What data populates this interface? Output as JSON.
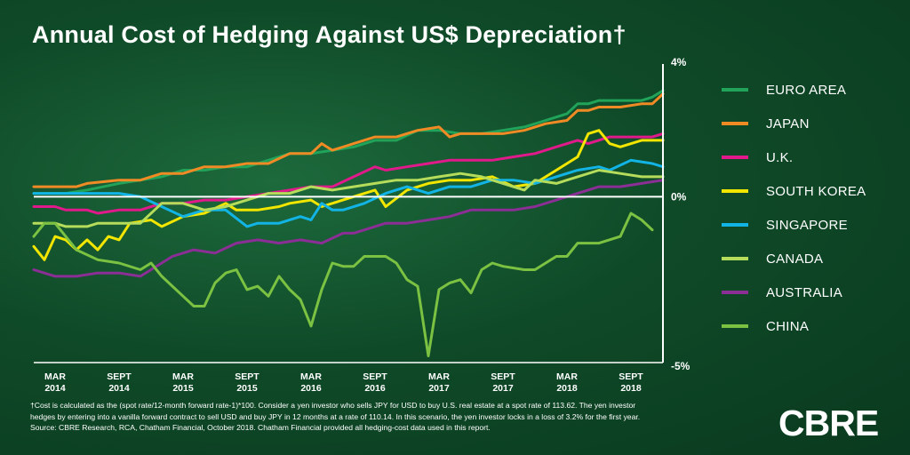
{
  "title": "Annual Cost of Hedging Against US$ Depreciation†",
  "footnote": {
    "line1": "†Cost is calculated as the (spot rate/12-month forward rate-1)*100. Consider a yen investor who sells JPY for USD to buy U.S. real estate at a spot rate of 113.62. The yen investor",
    "line2": "hedges by entering into a vanilla forward contract to sell USD and buy JPY in 12 months at a rate of 110.14. In this scenario, the yen investor locks in a loss of 3.2% for the first year.",
    "line3": "Source: CBRE Research, RCA, Chatham Financial, October 2018. Chatham Financial provided all hedging-cost data used in this report."
  },
  "logo": "CBRE",
  "chart_data": {
    "type": "line",
    "title": "Annual Cost of Hedging Against US$ Depreciation†",
    "xlabel": "",
    "ylabel": "",
    "x_ticks": [
      {
        "m1": "MAR",
        "m2": "2014",
        "x": 2
      },
      {
        "m1": "SEPT",
        "m2": "2014",
        "x": 8
      },
      {
        "m1": "MAR",
        "m2": "2015",
        "x": 14
      },
      {
        "m1": "SEPT",
        "m2": "2015",
        "x": 20
      },
      {
        "m1": "MAR",
        "m2": "2016",
        "x": 26
      },
      {
        "m1": "SEPT",
        "m2": "2016",
        "x": 32
      },
      {
        "m1": "MAR",
        "m2": "2017",
        "x": 38
      },
      {
        "m1": "SEPT",
        "m2": "2017",
        "x": 44
      },
      {
        "m1": "MAR",
        "m2": "2018",
        "x": 50
      },
      {
        "m1": "SEPT",
        "m2": "2018",
        "x": 56
      }
    ],
    "y_ticks": [
      {
        "label": "4%",
        "value": 4
      },
      {
        "label": "0%",
        "value": 0
      },
      {
        "label": "-5%",
        "value": -5
      }
    ],
    "xlim": [
      0,
      59
    ],
    "ylim": [
      -5,
      4
    ],
    "grid": false,
    "legend_position": "right",
    "series": [
      {
        "name": "EURO AREA",
        "color": "#21a35a",
        "points": [
          [
            0,
            0.1
          ],
          [
            3,
            0.1
          ],
          [
            5,
            0.2
          ],
          [
            8,
            0.4
          ],
          [
            12,
            0.6
          ],
          [
            14,
            0.8
          ],
          [
            16,
            0.8
          ],
          [
            18,
            0.9
          ],
          [
            20,
            0.9
          ],
          [
            22,
            1.1
          ],
          [
            24,
            1.3
          ],
          [
            26,
            1.3
          ],
          [
            28,
            1.4
          ],
          [
            30,
            1.5
          ],
          [
            32,
            1.7
          ],
          [
            34,
            1.7
          ],
          [
            36,
            2.0
          ],
          [
            38,
            2.0
          ],
          [
            40,
            1.9
          ],
          [
            42,
            1.9
          ],
          [
            44,
            2.0
          ],
          [
            46,
            2.1
          ],
          [
            48,
            2.3
          ],
          [
            50,
            2.5
          ],
          [
            51,
            2.8
          ],
          [
            52,
            2.8
          ],
          [
            53,
            2.9
          ],
          [
            55,
            2.9
          ],
          [
            57,
            2.9
          ],
          [
            58,
            3.0
          ],
          [
            59,
            3.2
          ]
        ]
      },
      {
        "name": "JAPAN",
        "color": "#f08a24",
        "points": [
          [
            0,
            0.3
          ],
          [
            4,
            0.3
          ],
          [
            5,
            0.4
          ],
          [
            8,
            0.5
          ],
          [
            10,
            0.5
          ],
          [
            12,
            0.7
          ],
          [
            14,
            0.7
          ],
          [
            16,
            0.9
          ],
          [
            18,
            0.9
          ],
          [
            20,
            1.0
          ],
          [
            22,
            1.0
          ],
          [
            24,
            1.3
          ],
          [
            26,
            1.3
          ],
          [
            27,
            1.6
          ],
          [
            28,
            1.4
          ],
          [
            30,
            1.6
          ],
          [
            32,
            1.8
          ],
          [
            34,
            1.8
          ],
          [
            36,
            2.0
          ],
          [
            38,
            2.1
          ],
          [
            39,
            1.8
          ],
          [
            40,
            1.9
          ],
          [
            44,
            1.9
          ],
          [
            46,
            2.0
          ],
          [
            48,
            2.2
          ],
          [
            50,
            2.3
          ],
          [
            51,
            2.6
          ],
          [
            52,
            2.6
          ],
          [
            53,
            2.7
          ],
          [
            55,
            2.7
          ],
          [
            57,
            2.8
          ],
          [
            58,
            2.8
          ],
          [
            59,
            3.1
          ]
        ]
      },
      {
        "name": "U.K.",
        "color": "#e01a8a",
        "points": [
          [
            0,
            -0.3
          ],
          [
            2,
            -0.3
          ],
          [
            3,
            -0.4
          ],
          [
            5,
            -0.4
          ],
          [
            6,
            -0.5
          ],
          [
            8,
            -0.4
          ],
          [
            10,
            -0.4
          ],
          [
            12,
            -0.2
          ],
          [
            14,
            -0.2
          ],
          [
            16,
            -0.1
          ],
          [
            18,
            -0.1
          ],
          [
            20,
            0.0
          ],
          [
            22,
            0.1
          ],
          [
            24,
            0.2
          ],
          [
            26,
            0.3
          ],
          [
            28,
            0.3
          ],
          [
            30,
            0.6
          ],
          [
            32,
            0.9
          ],
          [
            33,
            0.8
          ],
          [
            35,
            0.9
          ],
          [
            37,
            1.0
          ],
          [
            39,
            1.1
          ],
          [
            41,
            1.1
          ],
          [
            43,
            1.1
          ],
          [
            45,
            1.2
          ],
          [
            47,
            1.3
          ],
          [
            49,
            1.5
          ],
          [
            51,
            1.7
          ],
          [
            52,
            1.6
          ],
          [
            54,
            1.8
          ],
          [
            56,
            1.8
          ],
          [
            58,
            1.8
          ],
          [
            59,
            1.9
          ]
        ]
      },
      {
        "name": "SOUTH KOREA",
        "color": "#f2e600",
        "points": [
          [
            0,
            -1.5
          ],
          [
            1,
            -1.9
          ],
          [
            2,
            -1.2
          ],
          [
            3,
            -1.3
          ],
          [
            4,
            -1.6
          ],
          [
            5,
            -1.3
          ],
          [
            6,
            -1.6
          ],
          [
            7,
            -1.2
          ],
          [
            8,
            -1.3
          ],
          [
            9,
            -0.8
          ],
          [
            11,
            -0.7
          ],
          [
            12,
            -0.9
          ],
          [
            14,
            -0.6
          ],
          [
            16,
            -0.5
          ],
          [
            18,
            -0.2
          ],
          [
            19,
            -0.4
          ],
          [
            21,
            -0.4
          ],
          [
            23,
            -0.3
          ],
          [
            24,
            -0.2
          ],
          [
            26,
            -0.1
          ],
          [
            27,
            -0.3
          ],
          [
            28,
            -0.2
          ],
          [
            30,
            0.0
          ],
          [
            32,
            0.2
          ],
          [
            33,
            -0.3
          ],
          [
            35,
            0.2
          ],
          [
            37,
            0.4
          ],
          [
            39,
            0.5
          ],
          [
            41,
            0.5
          ],
          [
            43,
            0.6
          ],
          [
            45,
            0.3
          ],
          [
            47,
            0.4
          ],
          [
            49,
            0.8
          ],
          [
            51,
            1.2
          ],
          [
            52,
            1.9
          ],
          [
            53,
            2.0
          ],
          [
            54,
            1.6
          ],
          [
            55,
            1.5
          ],
          [
            57,
            1.7
          ],
          [
            59,
            1.7
          ]
        ]
      },
      {
        "name": "SINGAPORE",
        "color": "#12b4e6",
        "points": [
          [
            0,
            0.1
          ],
          [
            3,
            0.1
          ],
          [
            6,
            0.1
          ],
          [
            8,
            0.1
          ],
          [
            10,
            0.0
          ],
          [
            12,
            -0.3
          ],
          [
            14,
            -0.6
          ],
          [
            16,
            -0.4
          ],
          [
            18,
            -0.4
          ],
          [
            20,
            -0.9
          ],
          [
            21,
            -0.8
          ],
          [
            23,
            -0.8
          ],
          [
            25,
            -0.6
          ],
          [
            26,
            -0.7
          ],
          [
            27,
            -0.2
          ],
          [
            28,
            -0.4
          ],
          [
            29,
            -0.4
          ],
          [
            31,
            -0.2
          ],
          [
            33,
            0.1
          ],
          [
            35,
            0.3
          ],
          [
            37,
            0.1
          ],
          [
            39,
            0.3
          ],
          [
            41,
            0.3
          ],
          [
            43,
            0.5
          ],
          [
            45,
            0.5
          ],
          [
            47,
            0.4
          ],
          [
            49,
            0.6
          ],
          [
            51,
            0.8
          ],
          [
            53,
            0.9
          ],
          [
            54,
            0.8
          ],
          [
            56,
            1.1
          ],
          [
            58,
            1.0
          ],
          [
            59,
            0.9
          ]
        ]
      },
      {
        "name": "CANADA",
        "color": "#b5dc5a",
        "points": [
          [
            0,
            -0.8
          ],
          [
            2,
            -0.8
          ],
          [
            3,
            -0.9
          ],
          [
            5,
            -0.9
          ],
          [
            6,
            -0.8
          ],
          [
            8,
            -0.8
          ],
          [
            10,
            -0.8
          ],
          [
            12,
            -0.2
          ],
          [
            14,
            -0.2
          ],
          [
            16,
            -0.4
          ],
          [
            18,
            -0.3
          ],
          [
            20,
            -0.1
          ],
          [
            22,
            0.1
          ],
          [
            24,
            0.1
          ],
          [
            26,
            0.3
          ],
          [
            28,
            0.2
          ],
          [
            30,
            0.3
          ],
          [
            32,
            0.4
          ],
          [
            34,
            0.5
          ],
          [
            36,
            0.5
          ],
          [
            38,
            0.6
          ],
          [
            40,
            0.7
          ],
          [
            42,
            0.6
          ],
          [
            44,
            0.4
          ],
          [
            46,
            0.2
          ],
          [
            47,
            0.5
          ],
          [
            49,
            0.4
          ],
          [
            51,
            0.6
          ],
          [
            53,
            0.8
          ],
          [
            55,
            0.7
          ],
          [
            57,
            0.6
          ],
          [
            59,
            0.6
          ]
        ]
      },
      {
        "name": "AUSTRALIA",
        "color": "#8b2e95",
        "points": [
          [
            0,
            -2.2
          ],
          [
            2,
            -2.4
          ],
          [
            4,
            -2.4
          ],
          [
            6,
            -2.3
          ],
          [
            8,
            -2.3
          ],
          [
            10,
            -2.4
          ],
          [
            11,
            -2.2
          ],
          [
            13,
            -1.8
          ],
          [
            15,
            -1.6
          ],
          [
            17,
            -1.7
          ],
          [
            19,
            -1.4
          ],
          [
            21,
            -1.3
          ],
          [
            23,
            -1.4
          ],
          [
            25,
            -1.3
          ],
          [
            27,
            -1.4
          ],
          [
            29,
            -1.1
          ],
          [
            30,
            -1.1
          ],
          [
            31,
            -1.0
          ],
          [
            33,
            -0.8
          ],
          [
            35,
            -0.8
          ],
          [
            37,
            -0.7
          ],
          [
            39,
            -0.6
          ],
          [
            41,
            -0.4
          ],
          [
            43,
            -0.4
          ],
          [
            45,
            -0.4
          ],
          [
            47,
            -0.3
          ],
          [
            49,
            -0.1
          ],
          [
            51,
            0.1
          ],
          [
            53,
            0.3
          ],
          [
            55,
            0.3
          ],
          [
            57,
            0.4
          ],
          [
            59,
            0.5
          ]
        ]
      },
      {
        "name": "CHINA",
        "color": "#7bc142",
        "points": [
          [
            0,
            -1.2
          ],
          [
            1,
            -0.8
          ],
          [
            2,
            -0.8
          ],
          [
            4,
            -1.6
          ],
          [
            6,
            -1.9
          ],
          [
            8,
            -2.0
          ],
          [
            10,
            -2.2
          ],
          [
            11,
            -2.0
          ],
          [
            12,
            -2.4
          ],
          [
            14,
            -3.0
          ],
          [
            15,
            -3.3
          ],
          [
            16,
            -3.3
          ],
          [
            17,
            -2.6
          ],
          [
            18,
            -2.3
          ],
          [
            19,
            -2.2
          ],
          [
            20,
            -2.8
          ],
          [
            21,
            -2.7
          ],
          [
            22,
            -3.0
          ],
          [
            23,
            -2.4
          ],
          [
            24,
            -2.8
          ],
          [
            25,
            -3.1
          ],
          [
            26,
            -3.9
          ],
          [
            27,
            -2.8
          ],
          [
            28,
            -2.0
          ],
          [
            29,
            -2.1
          ],
          [
            30,
            -2.1
          ],
          [
            31,
            -1.8
          ],
          [
            33,
            -1.8
          ],
          [
            34,
            -2.0
          ],
          [
            35,
            -2.5
          ],
          [
            36,
            -2.7
          ],
          [
            37,
            -4.8
          ],
          [
            38,
            -2.8
          ],
          [
            39,
            -2.6
          ],
          [
            40,
            -2.5
          ],
          [
            41,
            -2.9
          ],
          [
            42,
            -2.2
          ],
          [
            43,
            -2.0
          ],
          [
            44,
            -2.1
          ],
          [
            46,
            -2.2
          ],
          [
            47,
            -2.2
          ],
          [
            48,
            -2.0
          ],
          [
            49,
            -1.8
          ],
          [
            50,
            -1.8
          ],
          [
            51,
            -1.4
          ],
          [
            53,
            -1.4
          ],
          [
            55,
            -1.2
          ],
          [
            56,
            -0.5
          ],
          [
            57,
            -0.7
          ],
          [
            58,
            -1.0
          ]
        ]
      }
    ]
  }
}
